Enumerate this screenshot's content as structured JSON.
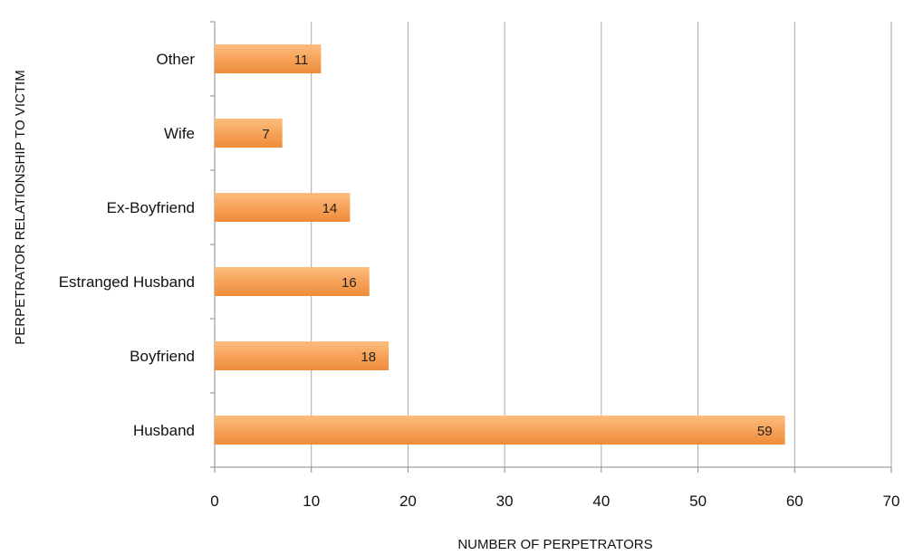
{
  "chart_data": {
    "type": "bar",
    "orientation": "horizontal",
    "title": "",
    "xlabel": "NUMBER OF PERPETRATORS",
    "ylabel": "PERPETRATOR RELATIONSHIP TO VICTIM",
    "categories": [
      "Other",
      "Wife",
      "Ex-Boyfriend",
      "Estranged Husband",
      "Boyfriend",
      "Husband"
    ],
    "values": [
      11,
      7,
      14,
      16,
      18,
      59
    ],
    "value_labels": [
      "11",
      "7",
      "14",
      "16",
      "18",
      "59"
    ],
    "xlim": [
      0,
      70
    ],
    "x_ticks": [
      0,
      10,
      20,
      30,
      40,
      50,
      60,
      70
    ],
    "x_tick_labels": [
      "0",
      "10",
      "20",
      "30",
      "40",
      "50",
      "60",
      "70"
    ],
    "grid": "vertical",
    "legend": "none",
    "colors": {
      "bar_top": "#fbbd7e",
      "bar_mid": "#f7a35a",
      "bar_bottom": "#ef8c3a",
      "grid": "#a8a8a8",
      "axis": "#8a8a8a"
    }
  }
}
